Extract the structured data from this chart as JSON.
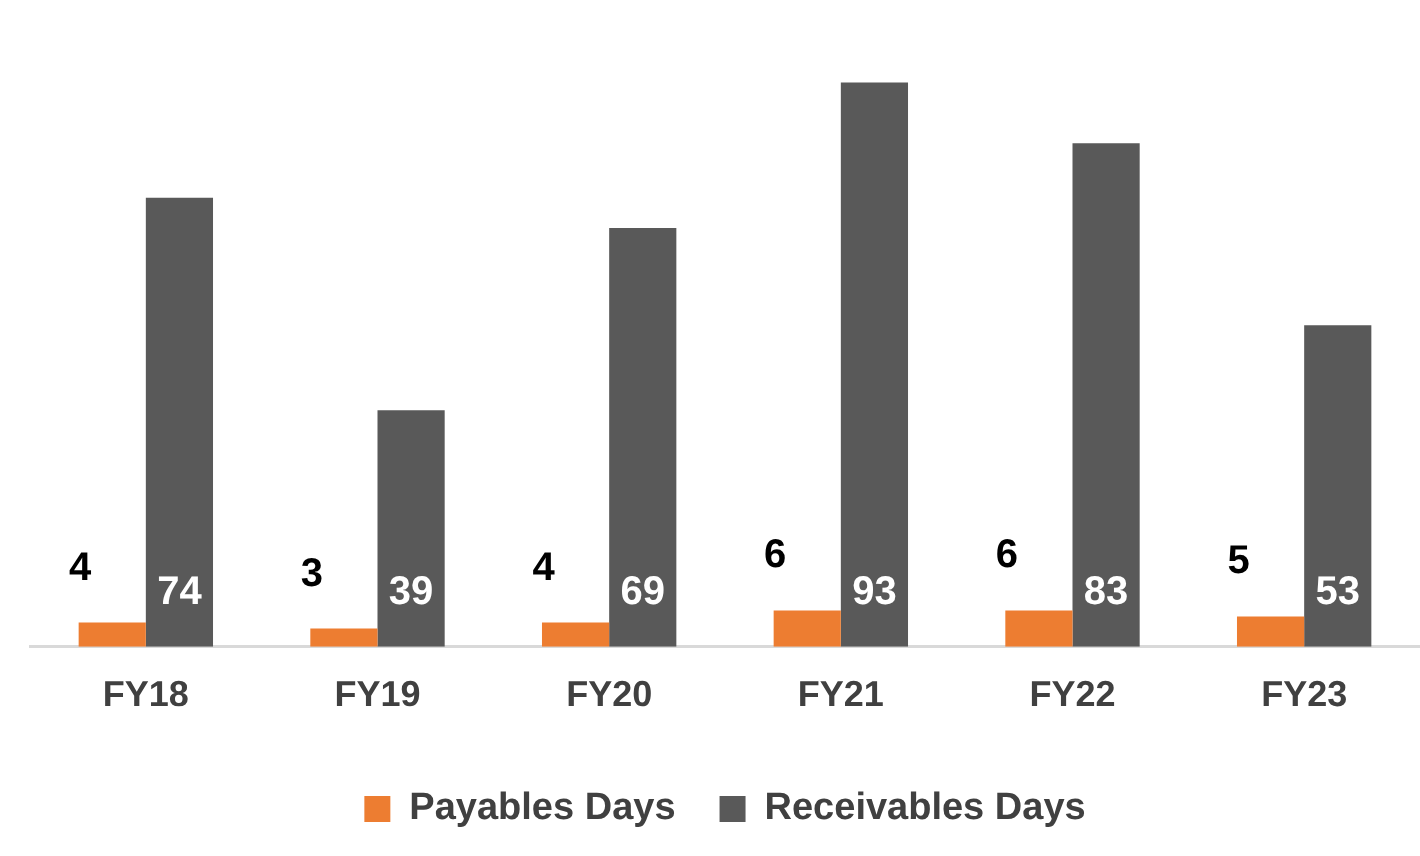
{
  "chart_data": {
    "type": "bar",
    "categories": [
      "FY18",
      "FY19",
      "FY20",
      "FY21",
      "FY22",
      "FY23"
    ],
    "series": [
      {
        "name": "Payables Days",
        "color": "#ed7d31",
        "values": [
          4,
          3,
          4,
          6,
          6,
          5
        ]
      },
      {
        "name": "Receivables Days",
        "color": "#595959",
        "values": [
          74,
          39,
          69,
          93,
          83,
          53
        ]
      }
    ],
    "data_labels": true,
    "legend": "bottom",
    "grid": false
  }
}
